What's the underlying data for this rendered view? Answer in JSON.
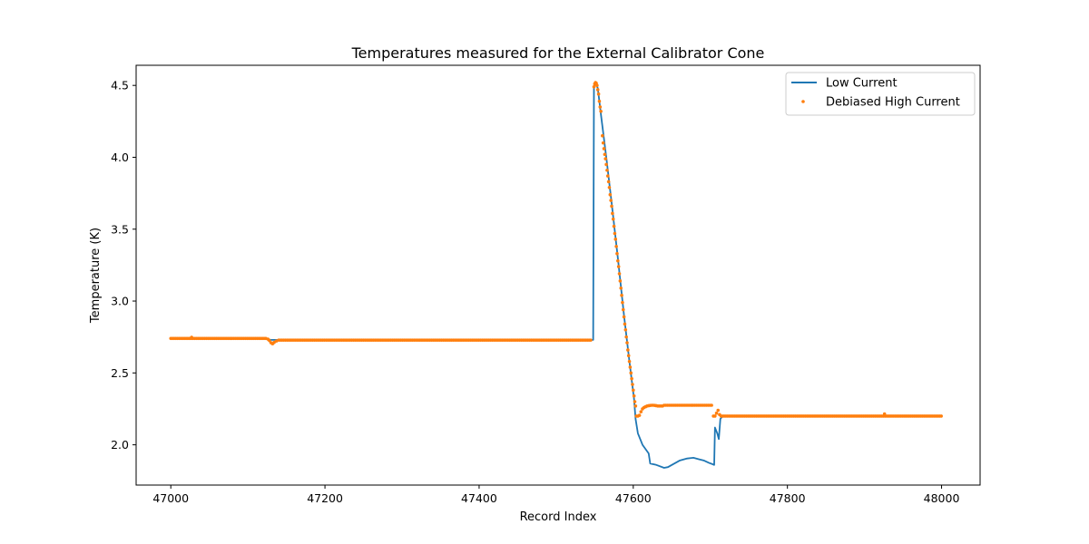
{
  "chart_data": {
    "type": "line",
    "title": "Temperatures measured for the External Calibrator Cone",
    "xlabel": "Record Index",
    "ylabel": "Temperature (K)",
    "xlim": [
      46955,
      48050
    ],
    "ylim": [
      1.72,
      4.64
    ],
    "xticks": [
      47000,
      47200,
      47400,
      47600,
      47800,
      48000
    ],
    "yticks": [
      2.0,
      2.5,
      3.0,
      3.5,
      4.0,
      4.5
    ],
    "ytick_labels": [
      "2.0",
      "2.5",
      "3.0",
      "3.5",
      "4.0",
      "4.5"
    ],
    "grid": false,
    "legend_position": "top-right",
    "series": [
      {
        "name": "Low Current",
        "style": "line",
        "color": "#1f77b4",
        "points": [
          [
            47000,
            2.74
          ],
          [
            47120,
            2.74
          ],
          [
            47130,
            2.73
          ],
          [
            47140,
            2.73
          ],
          [
            47300,
            2.73
          ],
          [
            47548,
            2.73
          ],
          [
            47549,
            4.49
          ],
          [
            47551,
            4.52
          ],
          [
            47554,
            4.48
          ],
          [
            47558,
            4.3
          ],
          [
            47565,
            4.0
          ],
          [
            47572,
            3.68
          ],
          [
            47580,
            3.3
          ],
          [
            47588,
            2.9
          ],
          [
            47595,
            2.58
          ],
          [
            47601,
            2.32
          ],
          [
            47603,
            2.18
          ],
          [
            47606,
            2.08
          ],
          [
            47612,
            2.0
          ],
          [
            47620,
            1.94
          ],
          [
            47622,
            1.87
          ],
          [
            47630,
            1.86
          ],
          [
            47640,
            1.84
          ],
          [
            47645,
            1.845
          ],
          [
            47650,
            1.86
          ],
          [
            47660,
            1.89
          ],
          [
            47670,
            1.905
          ],
          [
            47678,
            1.91
          ],
          [
            47685,
            1.9
          ],
          [
            47692,
            1.89
          ],
          [
            47698,
            1.875
          ],
          [
            47703,
            1.865
          ],
          [
            47705,
            1.86
          ],
          [
            47706,
            2.12
          ],
          [
            47709,
            2.08
          ],
          [
            47711,
            2.04
          ],
          [
            47713,
            2.18
          ],
          [
            47716,
            2.2
          ],
          [
            47800,
            2.2
          ],
          [
            47924,
            2.2
          ],
          [
            47926,
            2.21
          ],
          [
            47928,
            2.2
          ],
          [
            48000,
            2.2
          ]
        ]
      },
      {
        "name": "Debiased High Current",
        "style": "scatter",
        "color": "#ff7f0e",
        "segments": [
          {
            "x0": 47000,
            "x1": 47125,
            "step": 2.2,
            "y": 2.74
          },
          {
            "x0": 47140,
            "x1": 47546,
            "step": 2.2,
            "y": 2.728
          },
          {
            "x0": 47640,
            "x1": 47702,
            "step": 2.2,
            "y": 2.275
          },
          {
            "x0": 47718,
            "x1": 48000,
            "step": 2.2,
            "y": 2.2
          }
        ],
        "points": [
          [
            47027,
            2.748
          ],
          [
            47126,
            2.735
          ],
          [
            47128,
            2.725
          ],
          [
            47130,
            2.71
          ],
          [
            47132,
            2.703
          ],
          [
            47134,
            2.712
          ],
          [
            47137,
            2.722
          ],
          [
            47549,
            4.49
          ],
          [
            47550,
            4.51
          ],
          [
            47551,
            4.52
          ],
          [
            47552,
            4.515
          ],
          [
            47553,
            4.5
          ],
          [
            47554,
            4.47
          ],
          [
            47555,
            4.44
          ],
          [
            47556,
            4.39
          ],
          [
            47557,
            4.35
          ],
          [
            47558,
            4.32
          ],
          [
            47560,
            4.15
          ],
          [
            47561,
            4.1
          ],
          [
            47562,
            4.06
          ],
          [
            47563,
            4.02
          ],
          [
            47564,
            3.99
          ],
          [
            47565,
            3.95
          ],
          [
            47566,
            3.91
          ],
          [
            47567,
            3.87
          ],
          [
            47568,
            3.83
          ],
          [
            47569,
            3.79
          ],
          [
            47570,
            3.74
          ],
          [
            47571,
            3.7
          ],
          [
            47572,
            3.66
          ],
          [
            47573,
            3.61
          ],
          [
            47574,
            3.57
          ],
          [
            47575,
            3.52
          ],
          [
            47576,
            3.47
          ],
          [
            47577,
            3.43
          ],
          [
            47578,
            3.38
          ],
          [
            47579,
            3.33
          ],
          [
            47580,
            3.28
          ],
          [
            47581,
            3.24
          ],
          [
            47582,
            3.19
          ],
          [
            47583,
            3.14
          ],
          [
            47584,
            3.09
          ],
          [
            47585,
            3.04
          ],
          [
            47586,
            2.99
          ],
          [
            47587,
            2.94
          ],
          [
            47588,
            2.89
          ],
          [
            47589,
            2.84
          ],
          [
            47590,
            2.8
          ],
          [
            47591,
            2.75
          ],
          [
            47592,
            2.71
          ],
          [
            47593,
            2.66
          ],
          [
            47594,
            2.62
          ],
          [
            47595,
            2.58
          ],
          [
            47596,
            2.54
          ],
          [
            47597,
            2.5
          ],
          [
            47598,
            2.46
          ],
          [
            47599,
            2.42
          ],
          [
            47600,
            2.38
          ],
          [
            47601,
            2.34
          ],
          [
            47602,
            2.3
          ],
          [
            47603,
            2.27
          ],
          [
            47604,
            2.2
          ],
          [
            47606,
            2.2
          ],
          [
            47608,
            2.205
          ],
          [
            47610,
            2.23
          ],
          [
            47612,
            2.25
          ],
          [
            47614,
            2.26
          ],
          [
            47616,
            2.265
          ],
          [
            47618,
            2.27
          ],
          [
            47620,
            2.272
          ],
          [
            47622,
            2.274
          ],
          [
            47624,
            2.275
          ],
          [
            47626,
            2.275
          ],
          [
            47628,
            2.274
          ],
          [
            47630,
            2.272
          ],
          [
            47632,
            2.27
          ],
          [
            47634,
            2.27
          ],
          [
            47636,
            2.27
          ],
          [
            47638,
            2.27
          ],
          [
            47704,
            2.2
          ],
          [
            47706,
            2.2
          ],
          [
            47708,
            2.22
          ],
          [
            47710,
            2.24
          ],
          [
            47712,
            2.21
          ],
          [
            47714,
            2.2
          ],
          [
            47716,
            2.2
          ],
          [
            47926,
            2.215
          ]
        ]
      }
    ]
  }
}
